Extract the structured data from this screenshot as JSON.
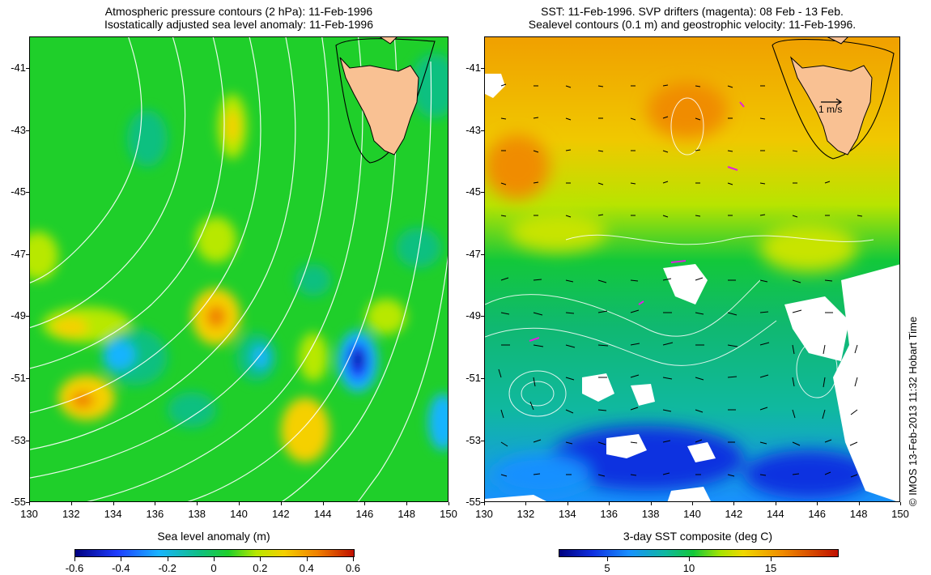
{
  "left_map": {
    "title_line1": "Atmospheric pressure contours (2 hPa): 11-Feb-1996",
    "title_line2": "Isostatically adjusted sea level anomaly: 11-Feb-1996",
    "colorbar_title": "Sea level anomaly (m)",
    "colorbar_ticks": [
      "-0.6",
      "-0.4",
      "-0.2",
      "0",
      "0.2",
      "0.4",
      "0.6"
    ],
    "colorbar_colors": [
      "#000080",
      "#1e3cff",
      "#19b4ff",
      "#10c080",
      "#1fcf2a",
      "#b8e800",
      "#f5d000",
      "#f08000",
      "#c01000"
    ]
  },
  "right_map": {
    "title_line1": "SST: 11-Feb-1996. SVP drifters (magenta): 08 Feb - 13 Feb.",
    "title_line2": "Sealevel contours (0.1 m) and geostrophic velocity: 11-Feb-1996.",
    "velocity_scale_label": "1 m/s",
    "colorbar_title": "3-day SST composite (deg C)",
    "colorbar_ticks": [
      "5",
      "10",
      "15"
    ],
    "colorbar_colors": [
      "#000080",
      "#1030e0",
      "#1890ff",
      "#10b8a0",
      "#12c83a",
      "#a8e400",
      "#f0d800",
      "#f08c00",
      "#c01000"
    ]
  },
  "axes": {
    "lat_ticks": [
      "-41",
      "-43",
      "-45",
      "-47",
      "-49",
      "-51",
      "-53",
      "-55"
    ],
    "lon_ticks": [
      "130",
      "132",
      "134",
      "136",
      "138",
      "140",
      "142",
      "144",
      "146",
      "148",
      "150"
    ]
  },
  "land_color": "#f9c193",
  "credit": "© IMOS 13-Feb-2013 11:32 Hobart Time"
}
